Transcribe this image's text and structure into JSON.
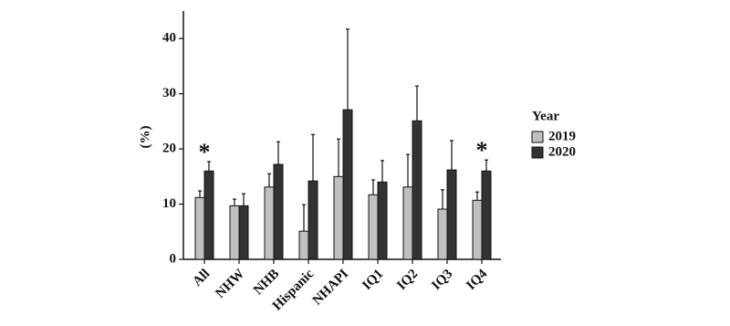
{
  "chart_data": {
    "type": "bar",
    "y_label": "(%)",
    "legend_title": "Year",
    "categories": [
      "All",
      "NHW",
      "NHB",
      "Hispanic",
      "NHAPI",
      "IQ1",
      "IQ2",
      "IQ3",
      "IQ4"
    ],
    "series": [
      {
        "name": "2019",
        "color": "#c0c0c0",
        "values": [
          11.2,
          9.7,
          13.1,
          5.1,
          15.0,
          11.7,
          13.1,
          9.1,
          10.7
        ],
        "errors": [
          1.2,
          1.2,
          2.4,
          4.8,
          6.8,
          2.7,
          5.9,
          3.5,
          1.5
        ]
      },
      {
        "name": "2020",
        "color": "#333333",
        "values": [
          16.0,
          9.7,
          17.2,
          14.2,
          27.1,
          14.0,
          25.1,
          16.2,
          16.0
        ],
        "errors": [
          1.7,
          2.2,
          4.1,
          8.4,
          14.6,
          3.9,
          6.3,
          5.3,
          2.0
        ]
      }
    ],
    "annotations": [
      {
        "text": "*",
        "category": "All"
      },
      {
        "text": "*",
        "category": "IQ4"
      }
    ],
    "ylim": [
      0,
      45
    ],
    "yticks": [
      0,
      10,
      20,
      30,
      40
    ],
    "grid": false,
    "legend": "right"
  }
}
